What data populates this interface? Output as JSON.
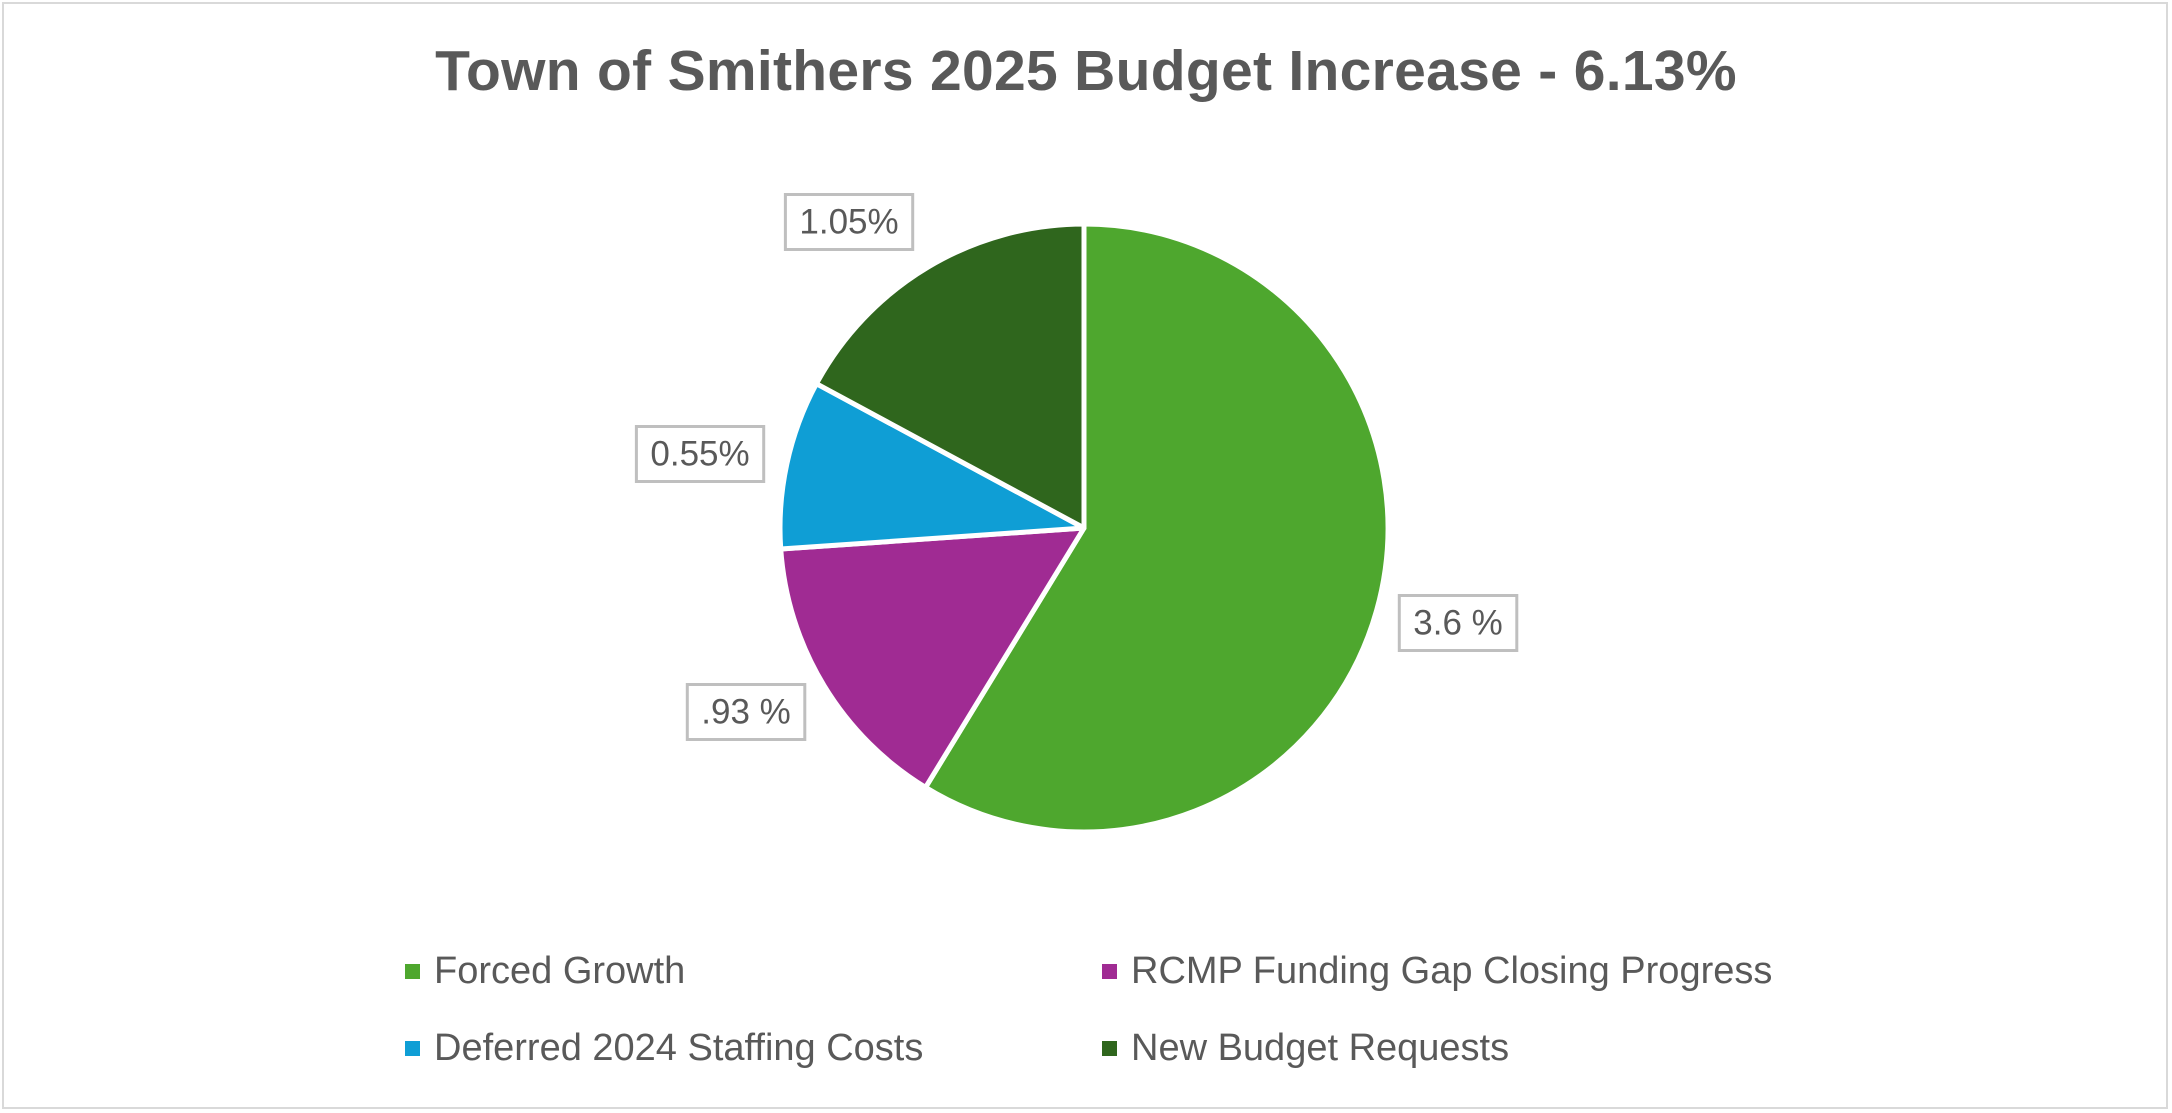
{
  "chart_data": {
    "type": "pie",
    "title": "Town of Smithers 2025 Budget Increase - 6.13%",
    "categories": [
      "Forced Growth",
      "RCMP Funding Gap Closing Progress",
      "Deferred 2024 Staffing Costs",
      "New Budget Requests"
    ],
    "values": [
      3.6,
      0.93,
      0.55,
      1.05
    ],
    "data_labels": [
      "3.6 %",
      ".93 %",
      "0.55%",
      "1.05%"
    ],
    "colors": [
      "#4ea72e",
      "#a02b93",
      "#0f9ed5",
      "#2f661d"
    ],
    "start_angle_deg": 0,
    "direction": "clockwise",
    "legend_position": "bottom"
  },
  "legend": {
    "items": [
      {
        "label": "Forced Growth",
        "color": "#4ea72e"
      },
      {
        "label": "RCMP Funding Gap Closing Progress",
        "color": "#a02b93"
      },
      {
        "label": "Deferred 2024 Staffing Costs",
        "color": "#0f9ed5"
      },
      {
        "label": "New Budget Requests",
        "color": "#2f661d"
      }
    ]
  }
}
